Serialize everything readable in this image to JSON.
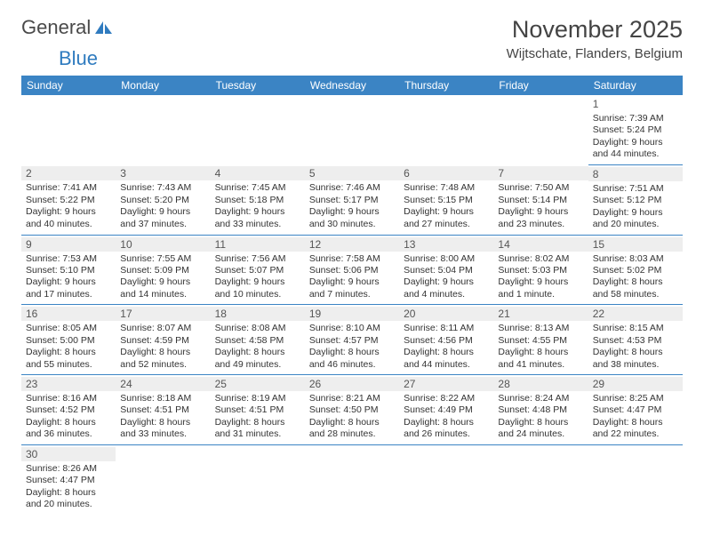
{
  "logo": {
    "text1": "General",
    "text2": "Blue"
  },
  "title": "November 2025",
  "location": "Wijtschate, Flanders, Belgium",
  "colors": {
    "header_bg": "#3b84c4",
    "header_text": "#ffffff",
    "day_num_bg": "#eeeeee",
    "text": "#333333",
    "logo_blue": "#2f7bbf",
    "border": "#3b84c4"
  },
  "fonts": {
    "title_size": 27,
    "location_size": 15,
    "header_size": 12,
    "cell_size": 10.5
  },
  "day_headers": [
    "Sunday",
    "Monday",
    "Tuesday",
    "Wednesday",
    "Thursday",
    "Friday",
    "Saturday"
  ],
  "weeks": [
    [
      null,
      null,
      null,
      null,
      null,
      null,
      {
        "n": "1",
        "sunrise": "7:39 AM",
        "sunset": "5:24 PM",
        "dh": "9",
        "dm": "44"
      }
    ],
    [
      {
        "n": "2",
        "sunrise": "7:41 AM",
        "sunset": "5:22 PM",
        "dh": "9",
        "dm": "40"
      },
      {
        "n": "3",
        "sunrise": "7:43 AM",
        "sunset": "5:20 PM",
        "dh": "9",
        "dm": "37"
      },
      {
        "n": "4",
        "sunrise": "7:45 AM",
        "sunset": "5:18 PM",
        "dh": "9",
        "dm": "33"
      },
      {
        "n": "5",
        "sunrise": "7:46 AM",
        "sunset": "5:17 PM",
        "dh": "9",
        "dm": "30"
      },
      {
        "n": "6",
        "sunrise": "7:48 AM",
        "sunset": "5:15 PM",
        "dh": "9",
        "dm": "27"
      },
      {
        "n": "7",
        "sunrise": "7:50 AM",
        "sunset": "5:14 PM",
        "dh": "9",
        "dm": "23"
      },
      {
        "n": "8",
        "sunrise": "7:51 AM",
        "sunset": "5:12 PM",
        "dh": "9",
        "dm": "20"
      }
    ],
    [
      {
        "n": "9",
        "sunrise": "7:53 AM",
        "sunset": "5:10 PM",
        "dh": "9",
        "dm": "17"
      },
      {
        "n": "10",
        "sunrise": "7:55 AM",
        "sunset": "5:09 PM",
        "dh": "9",
        "dm": "14"
      },
      {
        "n": "11",
        "sunrise": "7:56 AM",
        "sunset": "5:07 PM",
        "dh": "9",
        "dm": "10"
      },
      {
        "n": "12",
        "sunrise": "7:58 AM",
        "sunset": "5:06 PM",
        "dh": "9",
        "dm": "7"
      },
      {
        "n": "13",
        "sunrise": "8:00 AM",
        "sunset": "5:04 PM",
        "dh": "9",
        "dm": "4"
      },
      {
        "n": "14",
        "sunrise": "8:02 AM",
        "sunset": "5:03 PM",
        "dh": "9",
        "dm": "1",
        "singular": true
      },
      {
        "n": "15",
        "sunrise": "8:03 AM",
        "sunset": "5:02 PM",
        "dh": "8",
        "dm": "58"
      }
    ],
    [
      {
        "n": "16",
        "sunrise": "8:05 AM",
        "sunset": "5:00 PM",
        "dh": "8",
        "dm": "55"
      },
      {
        "n": "17",
        "sunrise": "8:07 AM",
        "sunset": "4:59 PM",
        "dh": "8",
        "dm": "52"
      },
      {
        "n": "18",
        "sunrise": "8:08 AM",
        "sunset": "4:58 PM",
        "dh": "8",
        "dm": "49"
      },
      {
        "n": "19",
        "sunrise": "8:10 AM",
        "sunset": "4:57 PM",
        "dh": "8",
        "dm": "46"
      },
      {
        "n": "20",
        "sunrise": "8:11 AM",
        "sunset": "4:56 PM",
        "dh": "8",
        "dm": "44"
      },
      {
        "n": "21",
        "sunrise": "8:13 AM",
        "sunset": "4:55 PM",
        "dh": "8",
        "dm": "41"
      },
      {
        "n": "22",
        "sunrise": "8:15 AM",
        "sunset": "4:53 PM",
        "dh": "8",
        "dm": "38"
      }
    ],
    [
      {
        "n": "23",
        "sunrise": "8:16 AM",
        "sunset": "4:52 PM",
        "dh": "8",
        "dm": "36"
      },
      {
        "n": "24",
        "sunrise": "8:18 AM",
        "sunset": "4:51 PM",
        "dh": "8",
        "dm": "33"
      },
      {
        "n": "25",
        "sunrise": "8:19 AM",
        "sunset": "4:51 PM",
        "dh": "8",
        "dm": "31"
      },
      {
        "n": "26",
        "sunrise": "8:21 AM",
        "sunset": "4:50 PM",
        "dh": "8",
        "dm": "28"
      },
      {
        "n": "27",
        "sunrise": "8:22 AM",
        "sunset": "4:49 PM",
        "dh": "8",
        "dm": "26"
      },
      {
        "n": "28",
        "sunrise": "8:24 AM",
        "sunset": "4:48 PM",
        "dh": "8",
        "dm": "24"
      },
      {
        "n": "29",
        "sunrise": "8:25 AM",
        "sunset": "4:47 PM",
        "dh": "8",
        "dm": "22"
      }
    ],
    [
      {
        "n": "30",
        "sunrise": "8:26 AM",
        "sunset": "4:47 PM",
        "dh": "8",
        "dm": "20"
      },
      null,
      null,
      null,
      null,
      null,
      null
    ]
  ],
  "labels": {
    "sunrise": "Sunrise:",
    "sunset": "Sunset:",
    "daylight": "Daylight:",
    "hours": "hours",
    "and": "and",
    "minutes": "minutes.",
    "minute": "minute."
  }
}
